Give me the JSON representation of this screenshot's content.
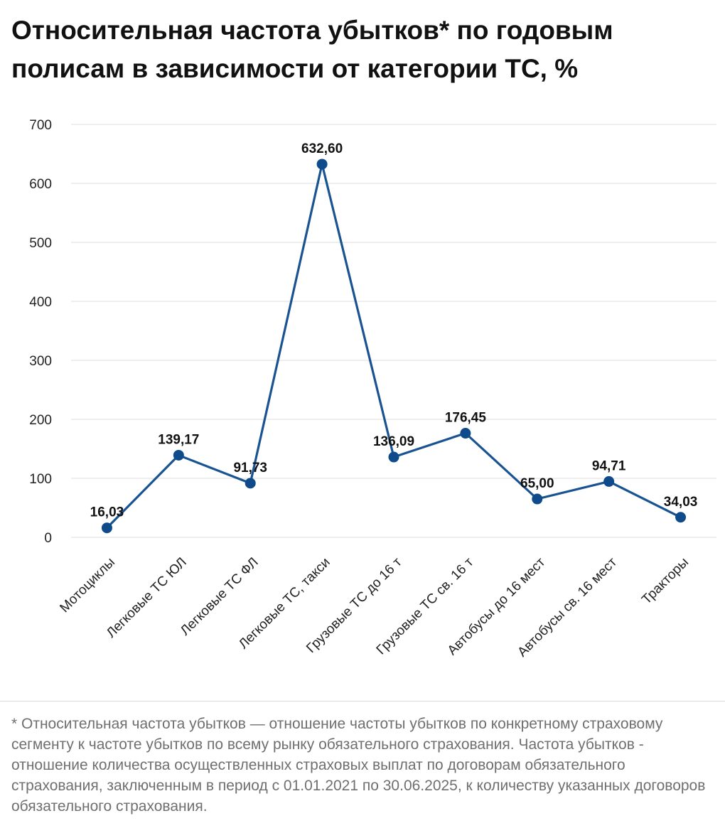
{
  "header": {
    "title": "Относительная частота убытков* по годовым полисам в зависимости от категории ТС, %"
  },
  "footnote": {
    "text": "* Относительная частота убытков — отношение частоты убытков по конкретному страховому сегменту к частоте убытков по всему рынку обязательного страхования. Частота убытков - отношение количества осуществленных страховых выплат по договорам обязательного страхования, заключенным в период с 01.01.2021 по 30.06.2025, к количеству указанных договоров обязательного страхования."
  },
  "chart_data": {
    "type": "line",
    "title": "Относительная частота убытков* по годовым полисам в зависимости от категории ТС, %",
    "xlabel": "",
    "ylabel": "",
    "categories": [
      "Мотоциклы",
      "Легковые ТС ЮЛ",
      "Легковые ТС ФЛ",
      "Легковые ТС, такси",
      "Грузовые ТС до 16 т",
      "Грузовые ТС св. 16 т",
      "Автобусы до 16 мест",
      "Автобусы св. 16 мест",
      "Тракторы"
    ],
    "values": [
      16.03,
      139.17,
      91.73,
      632.6,
      136.09,
      176.45,
      65.0,
      94.71,
      34.03
    ],
    "data_labels": [
      "16,03",
      "139,17",
      "91,73",
      "632,60",
      "136,09",
      "176,45",
      "65,00",
      "94,71",
      "34,03"
    ],
    "ylim": [
      0,
      700
    ],
    "yticks": [
      0,
      100,
      200,
      300,
      400,
      500,
      600,
      700
    ],
    "grid": true,
    "legend": "none",
    "colors": {
      "line": "#1a5391",
      "marker": "#0f4a8a",
      "grid": "#e3e3e3"
    }
  }
}
